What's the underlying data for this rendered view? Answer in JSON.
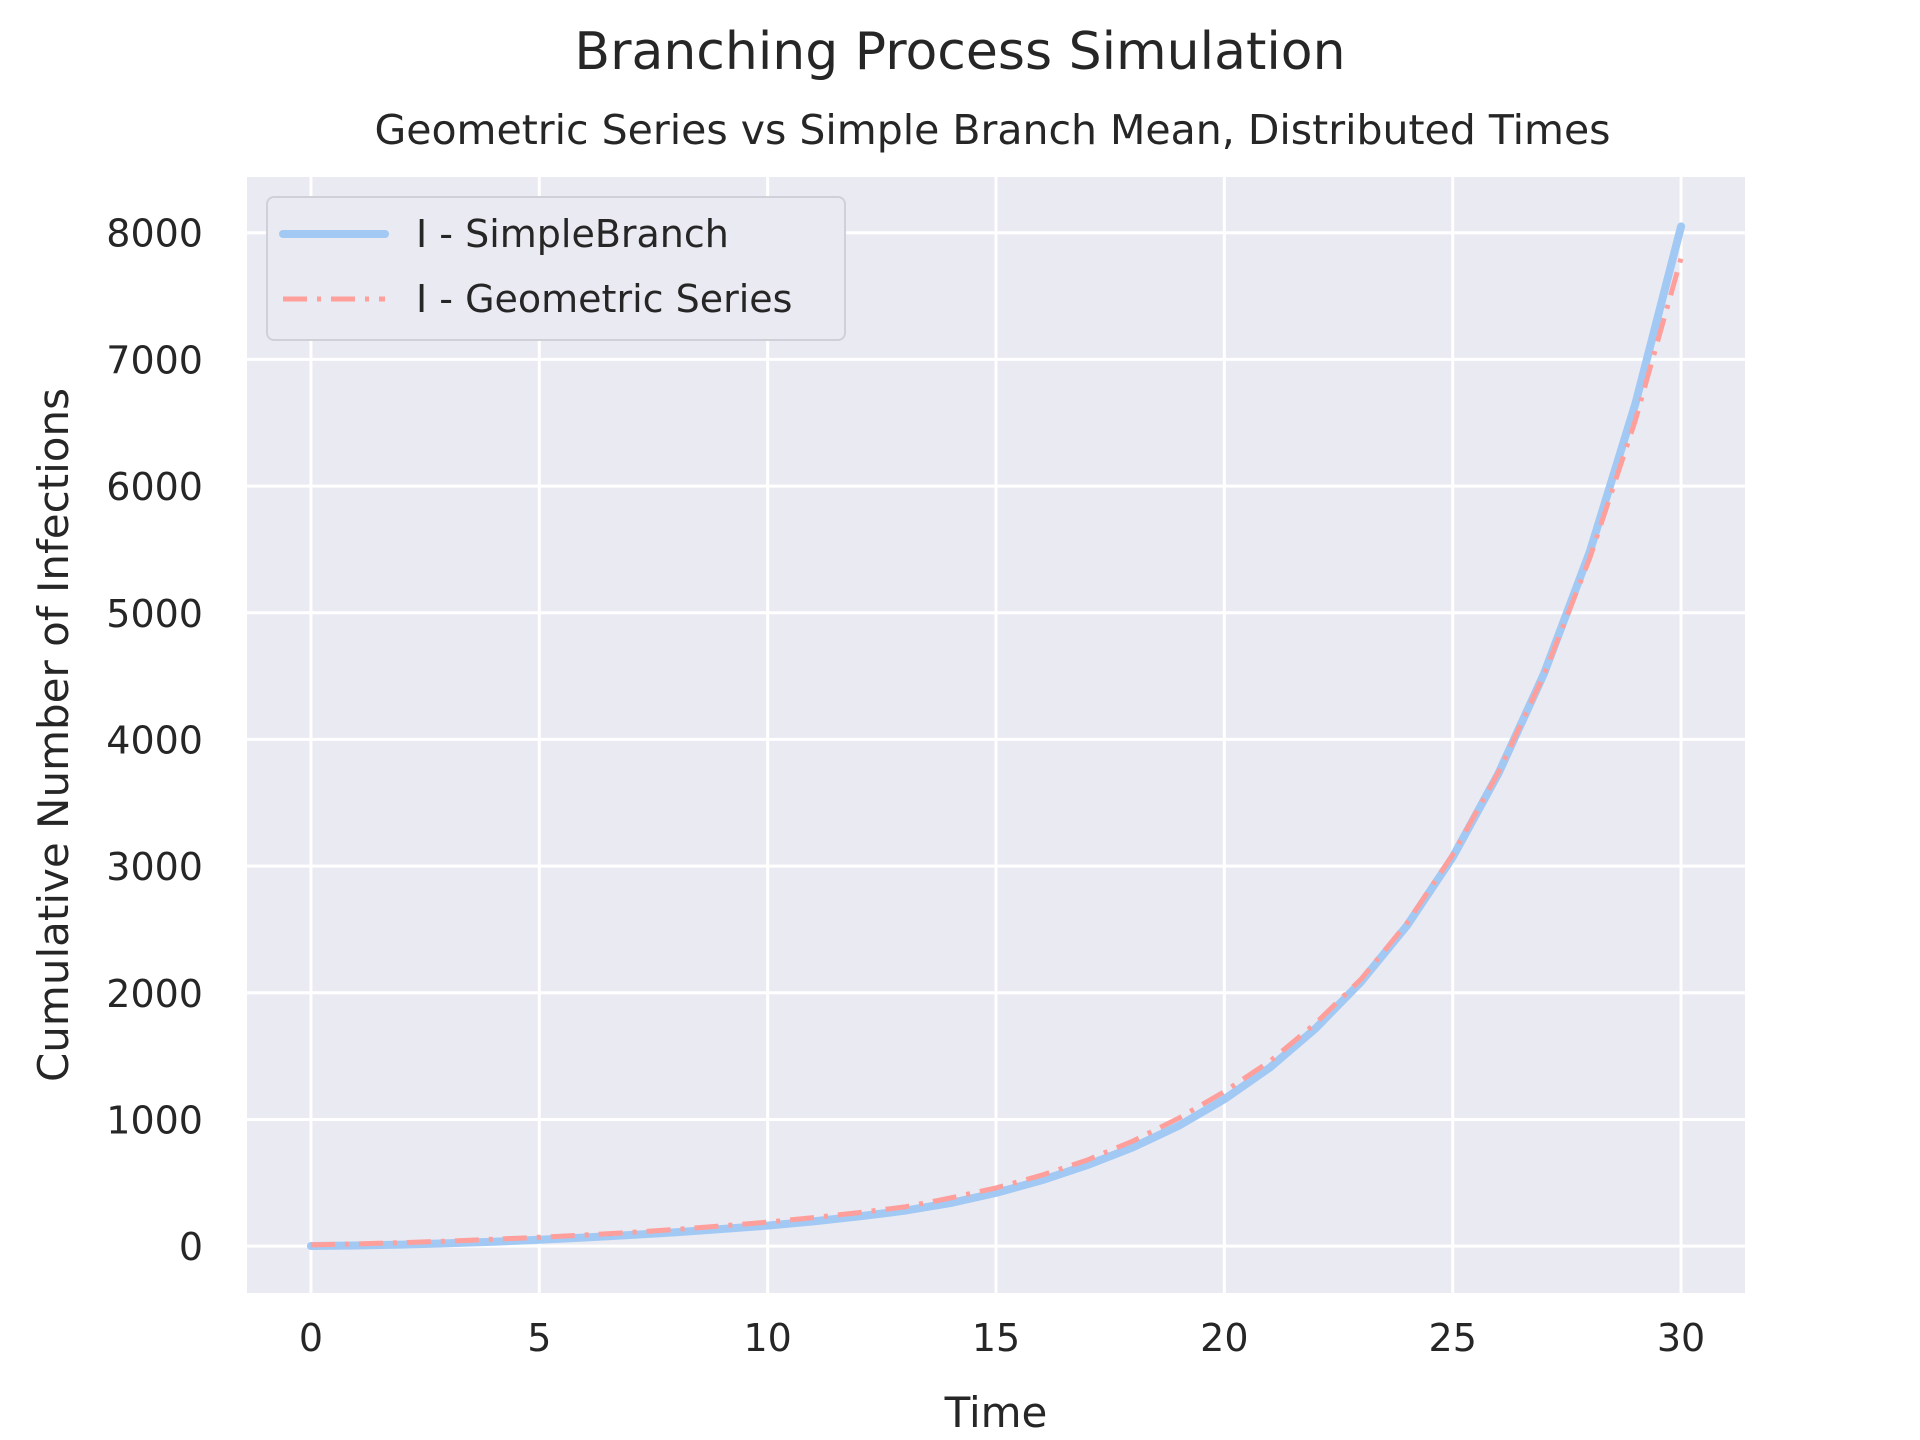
{
  "chart_data": {
    "type": "line",
    "title": "Branching Process Simulation",
    "subtitle": "Geometric Series vs Simple Branch Mean, Distributed Times",
    "xlabel": "Time",
    "ylabel": "Cumulative Number of Infections",
    "xlim": [
      -1.4,
      31.4
    ],
    "ylim": [
      -370,
      8440
    ],
    "xticks": [
      0,
      5,
      10,
      15,
      20,
      25,
      30
    ],
    "yticks": [
      0,
      1000,
      2000,
      3000,
      4000,
      5000,
      6000,
      7000,
      8000
    ],
    "grid": true,
    "legend_position": "top-left",
    "x": [
      0,
      1,
      2,
      3,
      4,
      5,
      6,
      7,
      8,
      9,
      10,
      11,
      12,
      13,
      14,
      15,
      16,
      17,
      18,
      19,
      20,
      21,
      22,
      23,
      24,
      25,
      26,
      27,
      28,
      29,
      30
    ],
    "series": [
      {
        "name": "I - SimpleBranch",
        "color": "#a1c9f4",
        "style": "solid",
        "values": [
          1,
          5,
          12,
          22,
          35,
          50,
          68,
          88,
          110,
          135,
          162,
          195,
          235,
          280,
          340,
          420,
          520,
          640,
          780,
          950,
          1160,
          1410,
          1720,
          2090,
          2530,
          3070,
          3730,
          4520,
          5480,
          6650,
          8050
        ]
      },
      {
        "name": "I - Geometric Series",
        "color": "#ff9f9b",
        "style": "dashdot",
        "values": [
          10,
          18,
          28,
          40,
          55,
          70,
          88,
          108,
          132,
          160,
          190,
          225,
          265,
          310,
          380,
          460,
          560,
          680,
          830,
          1010,
          1220,
          1460,
          1760,
          2110,
          2550,
          3090,
          3740,
          4510,
          5430,
          6520,
          7800
        ]
      }
    ]
  }
}
